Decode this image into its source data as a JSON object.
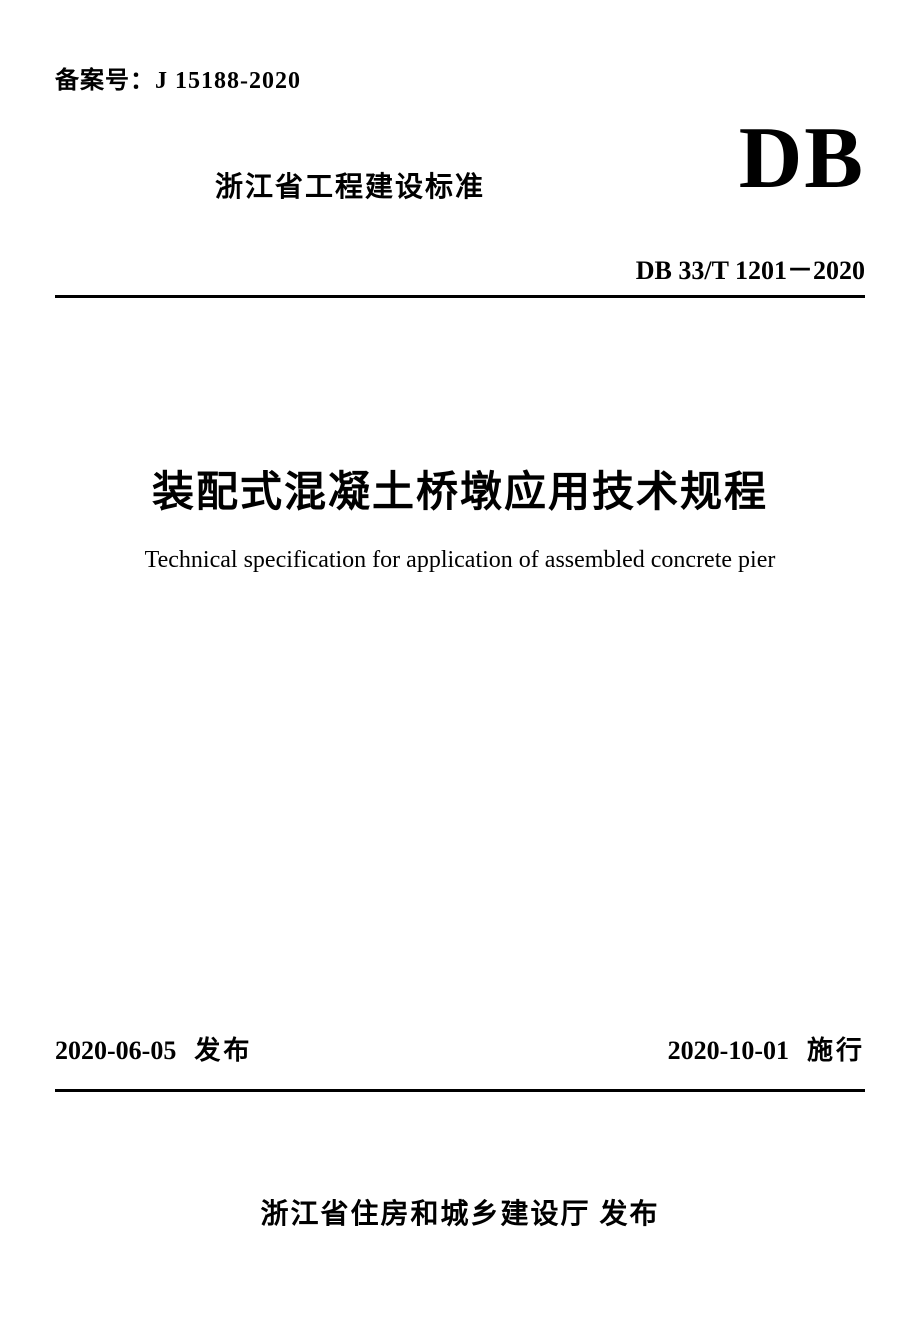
{
  "record_number_label": "备案号：",
  "record_number_value": "J 15188-2020",
  "standard_type": "浙江省工程建设标准",
  "db_logo": "DB",
  "standard_code": "DB 33/T 1201－2020",
  "title_cn": "装配式混凝土桥墩应用技术规程",
  "title_en": "Technical specification for application of assembled concrete pier",
  "issue_date": "2020-06-05",
  "issue_label": "发布",
  "effective_date": "2020-10-01",
  "effective_label": "施行",
  "publisher": "浙江省住房和城乡建设厅",
  "publisher_suffix": "发布"
}
